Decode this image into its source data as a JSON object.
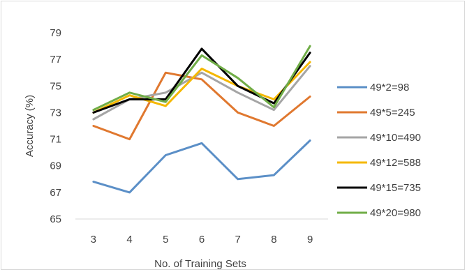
{
  "chart_data": {
    "type": "line",
    "xlabel": "No. of Training Sets",
    "ylabel": "Accuracy (%)",
    "x": [
      3,
      4,
      5,
      6,
      7,
      8,
      9
    ],
    "ylim": [
      65,
      79
    ],
    "yticks": [
      65,
      67,
      69,
      71,
      73,
      75,
      77,
      79
    ],
    "grid": false,
    "legend_position": "right",
    "series": [
      {
        "name": "49*2=98",
        "color": "#5b8fc7",
        "values": [
          67.8,
          67.0,
          69.8,
          70.7,
          68.0,
          68.3,
          70.9
        ]
      },
      {
        "name": "49*5=245",
        "color": "#e0782f",
        "values": [
          72.0,
          71.0,
          76.0,
          75.5,
          73.0,
          72.0,
          74.2
        ]
      },
      {
        "name": "49*10=490",
        "color": "#a5a5a5",
        "values": [
          72.5,
          74.0,
          74.5,
          76.0,
          74.5,
          73.2,
          76.5
        ]
      },
      {
        "name": "49*12=588",
        "color": "#f5b800",
        "values": [
          73.0,
          74.3,
          73.5,
          76.3,
          75.0,
          74.0,
          76.8
        ]
      },
      {
        "name": "49*15=735",
        "color": "#000000",
        "values": [
          73.0,
          74.0,
          74.0,
          77.8,
          75.0,
          73.7,
          77.5
        ]
      },
      {
        "name": "49*20=980",
        "color": "#70ad47",
        "values": [
          73.2,
          74.5,
          73.8,
          77.3,
          75.6,
          73.4,
          78.0
        ]
      }
    ]
  }
}
